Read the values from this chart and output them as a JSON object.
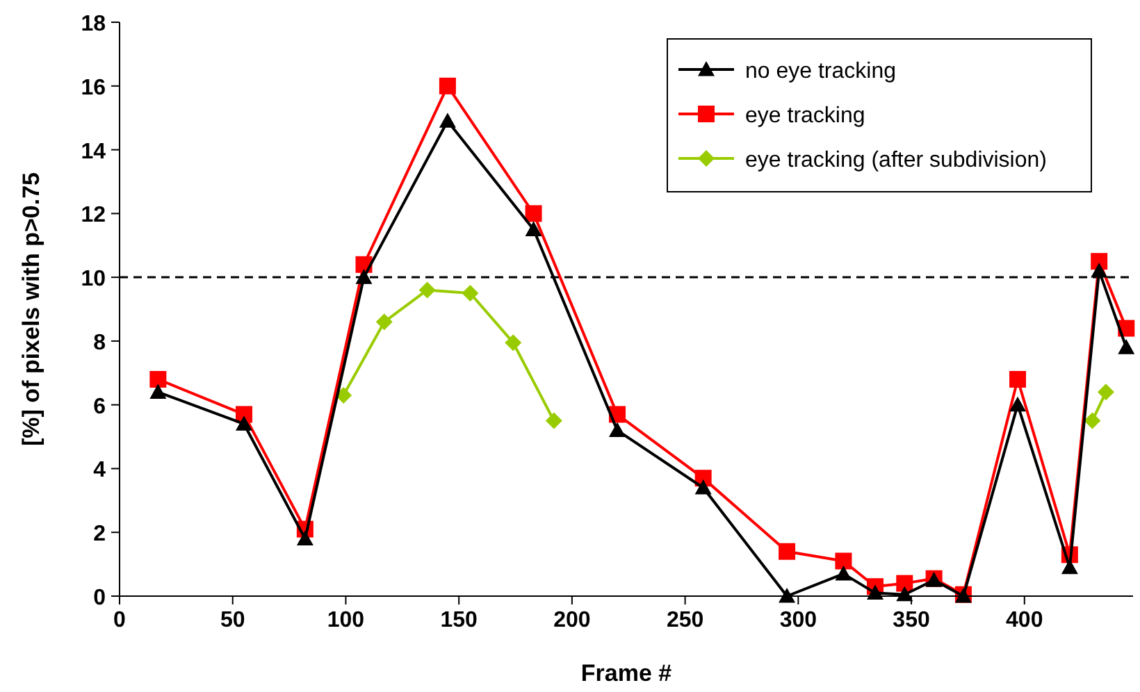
{
  "chart_data": {
    "type": "line",
    "xlabel": "Frame #",
    "ylabel": "[%] of pixels with p>0.75",
    "xlim": [
      0,
      448
    ],
    "xticks": [
      0,
      50,
      100,
      150,
      200,
      250,
      300,
      350,
      400
    ],
    "ylim": [
      0,
      18
    ],
    "yticks": [
      0,
      2,
      4,
      6,
      8,
      10,
      12,
      14,
      16,
      18
    ],
    "legend": "top right",
    "grid": false,
    "ref_lines": [
      {
        "axis": "y",
        "value": 10,
        "line_style": "dashed",
        "color": "#000000"
      }
    ],
    "series": [
      {
        "name": "no eye tracking",
        "color": "#000000",
        "marker": "triangle",
        "x": [
          17,
          55,
          82,
          108,
          145,
          183,
          220,
          258,
          295,
          320,
          334,
          347,
          360,
          373,
          397,
          420,
          433,
          445
        ],
        "values": [
          6.4,
          5.4,
          1.8,
          10.0,
          14.9,
          11.5,
          5.2,
          3.4,
          0.0,
          0.7,
          0.1,
          0.05,
          0.5,
          0.0,
          6.0,
          0.9,
          10.2,
          7.8
        ]
      },
      {
        "name": "eye tracking",
        "color": "#ff0000",
        "marker": "square",
        "x": [
          17,
          55,
          82,
          108,
          145,
          183,
          220,
          258,
          295,
          320,
          334,
          347,
          360,
          373,
          397,
          420,
          433,
          445
        ],
        "values": [
          6.8,
          5.7,
          2.1,
          10.4,
          16.0,
          12.0,
          5.7,
          3.7,
          1.4,
          1.1,
          0.3,
          0.4,
          0.55,
          0.05,
          6.8,
          1.3,
          10.5,
          8.4
        ]
      },
      {
        "name": "eye tracking (after subdivision)",
        "color": "#99cc00",
        "marker": "diamond",
        "x": [
          99,
          117,
          136,
          155,
          174,
          192,
          300,
          430,
          436
        ],
        "values": [
          6.3,
          8.6,
          9.6,
          9.5,
          7.95,
          5.5,
          null,
          5.5,
          6.4
        ]
      }
    ]
  }
}
